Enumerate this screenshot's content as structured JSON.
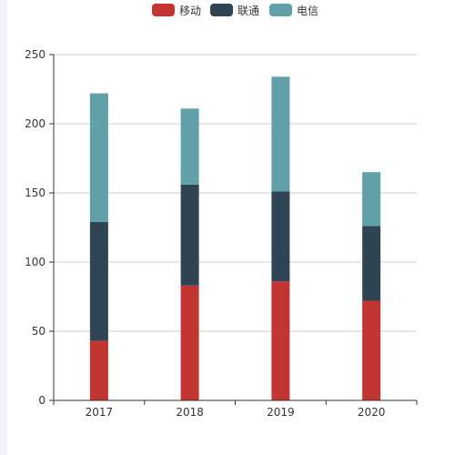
{
  "chart_data": {
    "type": "bar",
    "stacked": true,
    "categories": [
      "2017",
      "2018",
      "2019",
      "2020"
    ],
    "series": [
      {
        "name": "移动",
        "color": "#c23531",
        "values": [
          43,
          83,
          86,
          72
        ]
      },
      {
        "name": "联通",
        "color": "#2f4554",
        "values": [
          86,
          73,
          65,
          54
        ]
      },
      {
        "name": "电信",
        "color": "#61a0a8",
        "values": [
          93,
          55,
          83,
          39
        ]
      }
    ],
    "ylim": [
      0,
      250
    ],
    "yticks": [
      0,
      50,
      100,
      150,
      200,
      250
    ],
    "grid": true,
    "legend_position": "top-center"
  }
}
